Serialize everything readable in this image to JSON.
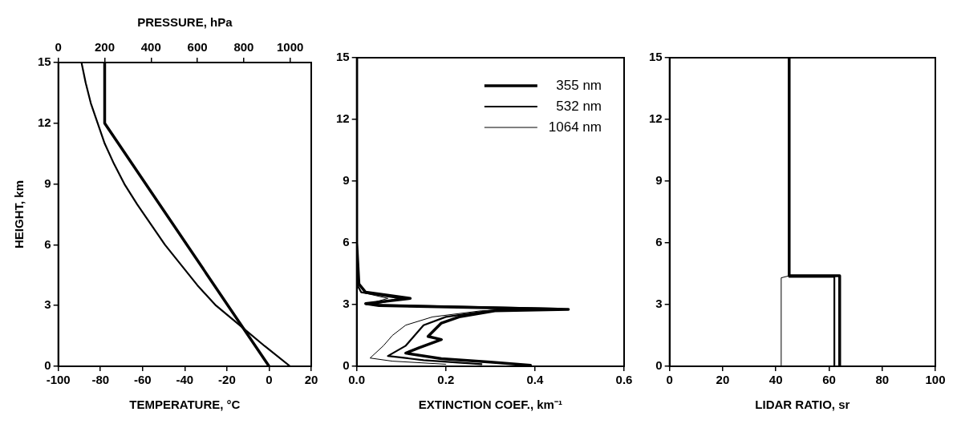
{
  "chart_data": [
    {
      "type": "line",
      "xlabel": "TEMPERATURE, °C",
      "x2label": "PRESSURE, hPa",
      "ylabel": "HEIGHT, km",
      "xlim": [
        -100,
        20
      ],
      "xticks": [
        -100,
        -80,
        -60,
        -40,
        -20,
        0,
        20
      ],
      "x2lim": [
        0,
        1091
      ],
      "x2ticks": [
        0,
        200,
        400,
        600,
        800,
        1000
      ],
      "ylim": [
        0,
        15
      ],
      "yticks": [
        0,
        3,
        6,
        9,
        12,
        15
      ],
      "grid": false,
      "legend": false,
      "marker": "none",
      "line_style": "solid",
      "series": [
        {
          "color": "#000000",
          "x": [
            0,
            -78,
            -78
          ],
          "values": [
            0,
            12,
            15
          ]
        },
        {
          "color": "#000000",
          "axis": "x2",
          "x": [
            1000,
            890,
            785,
            680,
            600,
            530,
            460,
            400,
            340,
            285,
            240,
            200,
            170,
            140,
            118,
            100
          ],
          "values": [
            0,
            1,
            2,
            3,
            4,
            5,
            6,
            7,
            8,
            9,
            10,
            11,
            12,
            13,
            14,
            15
          ]
        }
      ]
    },
    {
      "type": "line",
      "xlabel": "EXTINCTION COEF., km⁻¹",
      "xlim": [
        0,
        0.6
      ],
      "xticks": [
        {
          "value": 0,
          "label": "0.0"
        },
        {
          "value": 0.2,
          "label": "0.2"
        },
        {
          "value": 0.4,
          "label": "0.4"
        },
        {
          "value": 0.6,
          "label": "0.6"
        }
      ],
      "ylim": [
        0,
        15
      ],
      "yticks": [
        0,
        3,
        6,
        9,
        12,
        15
      ],
      "grid": false,
      "legend": "top right",
      "marker": "none",
      "line_style": "solid",
      "series": [
        {
          "name": "355 nm",
          "color": "#000000",
          "x": [
            0.39,
            0.3,
            0.19,
            0.11,
            0.14,
            0.19,
            0.16,
            0.19,
            0.23,
            0.31,
            0.475,
            0.05,
            0.02,
            0.12,
            0.02,
            0.005,
            0,
            0
          ],
          "values": [
            0.05,
            0.2,
            0.37,
            0.64,
            0.9,
            1.3,
            1.45,
            2.1,
            2.4,
            2.7,
            2.77,
            2.95,
            3.05,
            3.3,
            3.6,
            4,
            6,
            15
          ]
        },
        {
          "name": "532 nm",
          "color": "#000000",
          "x": [
            0.28,
            0.15,
            0.07,
            0.11,
            0.13,
            0.15,
            0.2,
            0.3,
            0.45,
            0.03,
            0.1,
            0.01,
            0,
            0
          ],
          "values": [
            0.1,
            0.3,
            0.5,
            1,
            1.5,
            2,
            2.4,
            2.7,
            2.8,
            3,
            3.3,
            3.6,
            4,
            15
          ]
        },
        {
          "name": "1064 nm",
          "color": "#000000",
          "x": [
            0.2,
            0.08,
            0.03,
            0.06,
            0.08,
            0.11,
            0.17,
            0.28,
            0.42,
            0.02,
            0.07,
            0.01,
            0,
            0
          ],
          "values": [
            0.1,
            0.25,
            0.4,
            1,
            1.5,
            2,
            2.4,
            2.7,
            2.8,
            3,
            3.3,
            3.6,
            4,
            15
          ]
        }
      ]
    },
    {
      "type": "line",
      "xlabel": "LIDAR RATIO, sr",
      "xlim": [
        0,
        100
      ],
      "xticks": [
        0,
        20,
        40,
        60,
        80,
        100
      ],
      "ylim": [
        0,
        15
      ],
      "yticks": [
        0,
        3,
        6,
        9,
        12,
        15
      ],
      "grid": false,
      "legend": false,
      "marker": "none",
      "line_style": "solid",
      "series": [
        {
          "color": "#000000",
          "x": [
            64,
            64,
            45,
            45
          ],
          "values": [
            0,
            4.4,
            4.4,
            15
          ]
        },
        {
          "color": "#000000",
          "x": [
            62,
            62,
            45,
            45
          ],
          "values": [
            0,
            4.35,
            4.35,
            15
          ]
        },
        {
          "color": "#000000",
          "x": [
            42,
            42,
            45,
            45
          ],
          "values": [
            0,
            4.3,
            4.4,
            15
          ]
        }
      ]
    }
  ]
}
